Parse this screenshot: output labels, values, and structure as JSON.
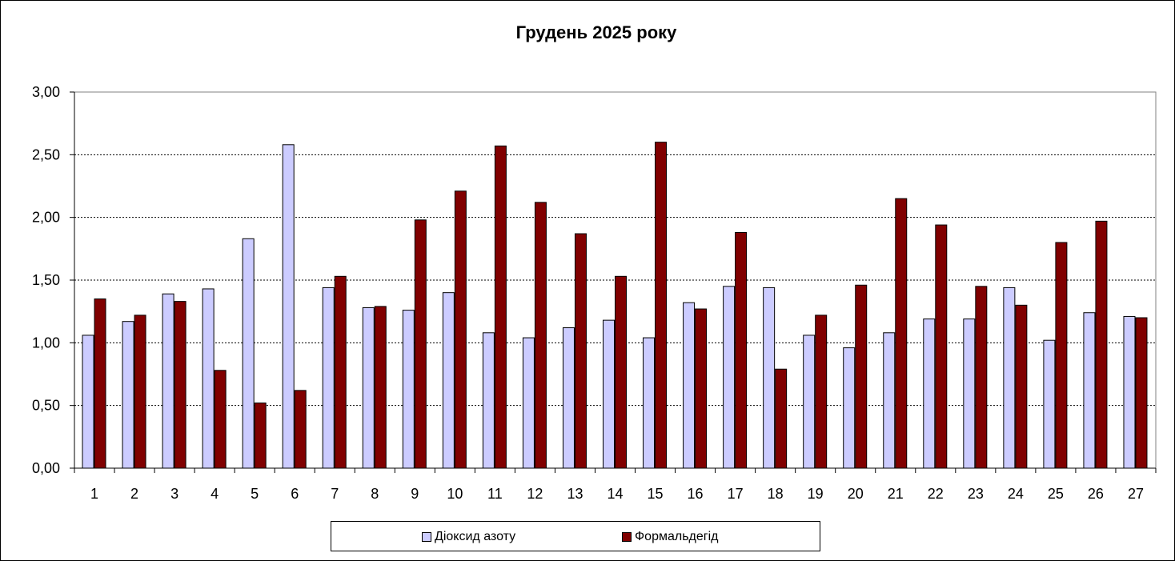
{
  "chart_data": {
    "type": "bar",
    "title": "Грудень 2025 року",
    "xlabel": "",
    "ylabel": "",
    "ylim": [
      0,
      3
    ],
    "yticks": [
      "0,00",
      "0,50",
      "1,00",
      "1,50",
      "2,00",
      "2,50",
      "3,00"
    ],
    "grid": "horizontal-dotted",
    "legend_position": "bottom",
    "categories": [
      "1",
      "2",
      "3",
      "4",
      "5",
      "6",
      "7",
      "8",
      "9",
      "10",
      "11",
      "12",
      "13",
      "14",
      "15",
      "16",
      "17",
      "18",
      "19",
      "20",
      "21",
      "22",
      "23",
      "24",
      "25",
      "26",
      "27"
    ],
    "series": [
      {
        "name": "Діоксид азоту",
        "color": "#ccccff",
        "values": [
          1.06,
          1.17,
          1.39,
          1.43,
          1.83,
          2.58,
          1.44,
          1.28,
          1.26,
          1.4,
          1.08,
          1.04,
          1.12,
          1.18,
          1.04,
          1.32,
          1.45,
          1.44,
          1.06,
          0.96,
          1.08,
          1.19,
          1.19,
          1.44,
          1.02,
          1.24,
          1.21
        ]
      },
      {
        "name": "Формальдегід",
        "color": "#800000",
        "values": [
          1.35,
          1.22,
          1.33,
          0.78,
          0.52,
          0.62,
          1.53,
          1.29,
          1.98,
          2.21,
          2.57,
          2.12,
          1.87,
          1.53,
          2.6,
          1.27,
          1.88,
          0.79,
          1.22,
          1.46,
          2.15,
          1.94,
          1.45,
          1.3,
          1.8,
          1.97,
          1.2
        ]
      }
    ]
  }
}
